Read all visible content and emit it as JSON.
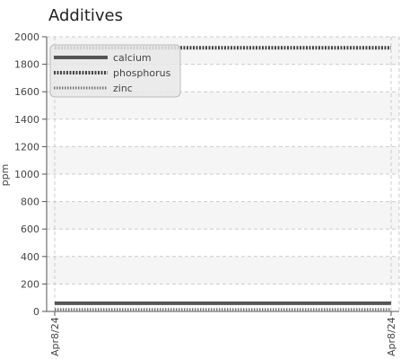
{
  "chart_data": {
    "type": "line",
    "title": "Additives",
    "ylabel": "ppm",
    "xlabel": "",
    "ylim": [
      0,
      2000
    ],
    "yticks": [
      0,
      200,
      400,
      600,
      800,
      1000,
      1200,
      1400,
      1600,
      1800,
      2000
    ],
    "x": [
      "Apr8/24",
      "Apr8/24"
    ],
    "series": [
      {
        "name": "calcium",
        "values": [
          60,
          60
        ],
        "color": "#555555",
        "style": "solid"
      },
      {
        "name": "phosphorus",
        "values": [
          1920,
          1920
        ],
        "color": "#444444",
        "style": "dotted-heavy"
      },
      {
        "name": "zinc",
        "values": [
          15,
          15
        ],
        "color": "#777777",
        "style": "dotted"
      }
    ],
    "grid": true,
    "legend_position": "top-left"
  }
}
